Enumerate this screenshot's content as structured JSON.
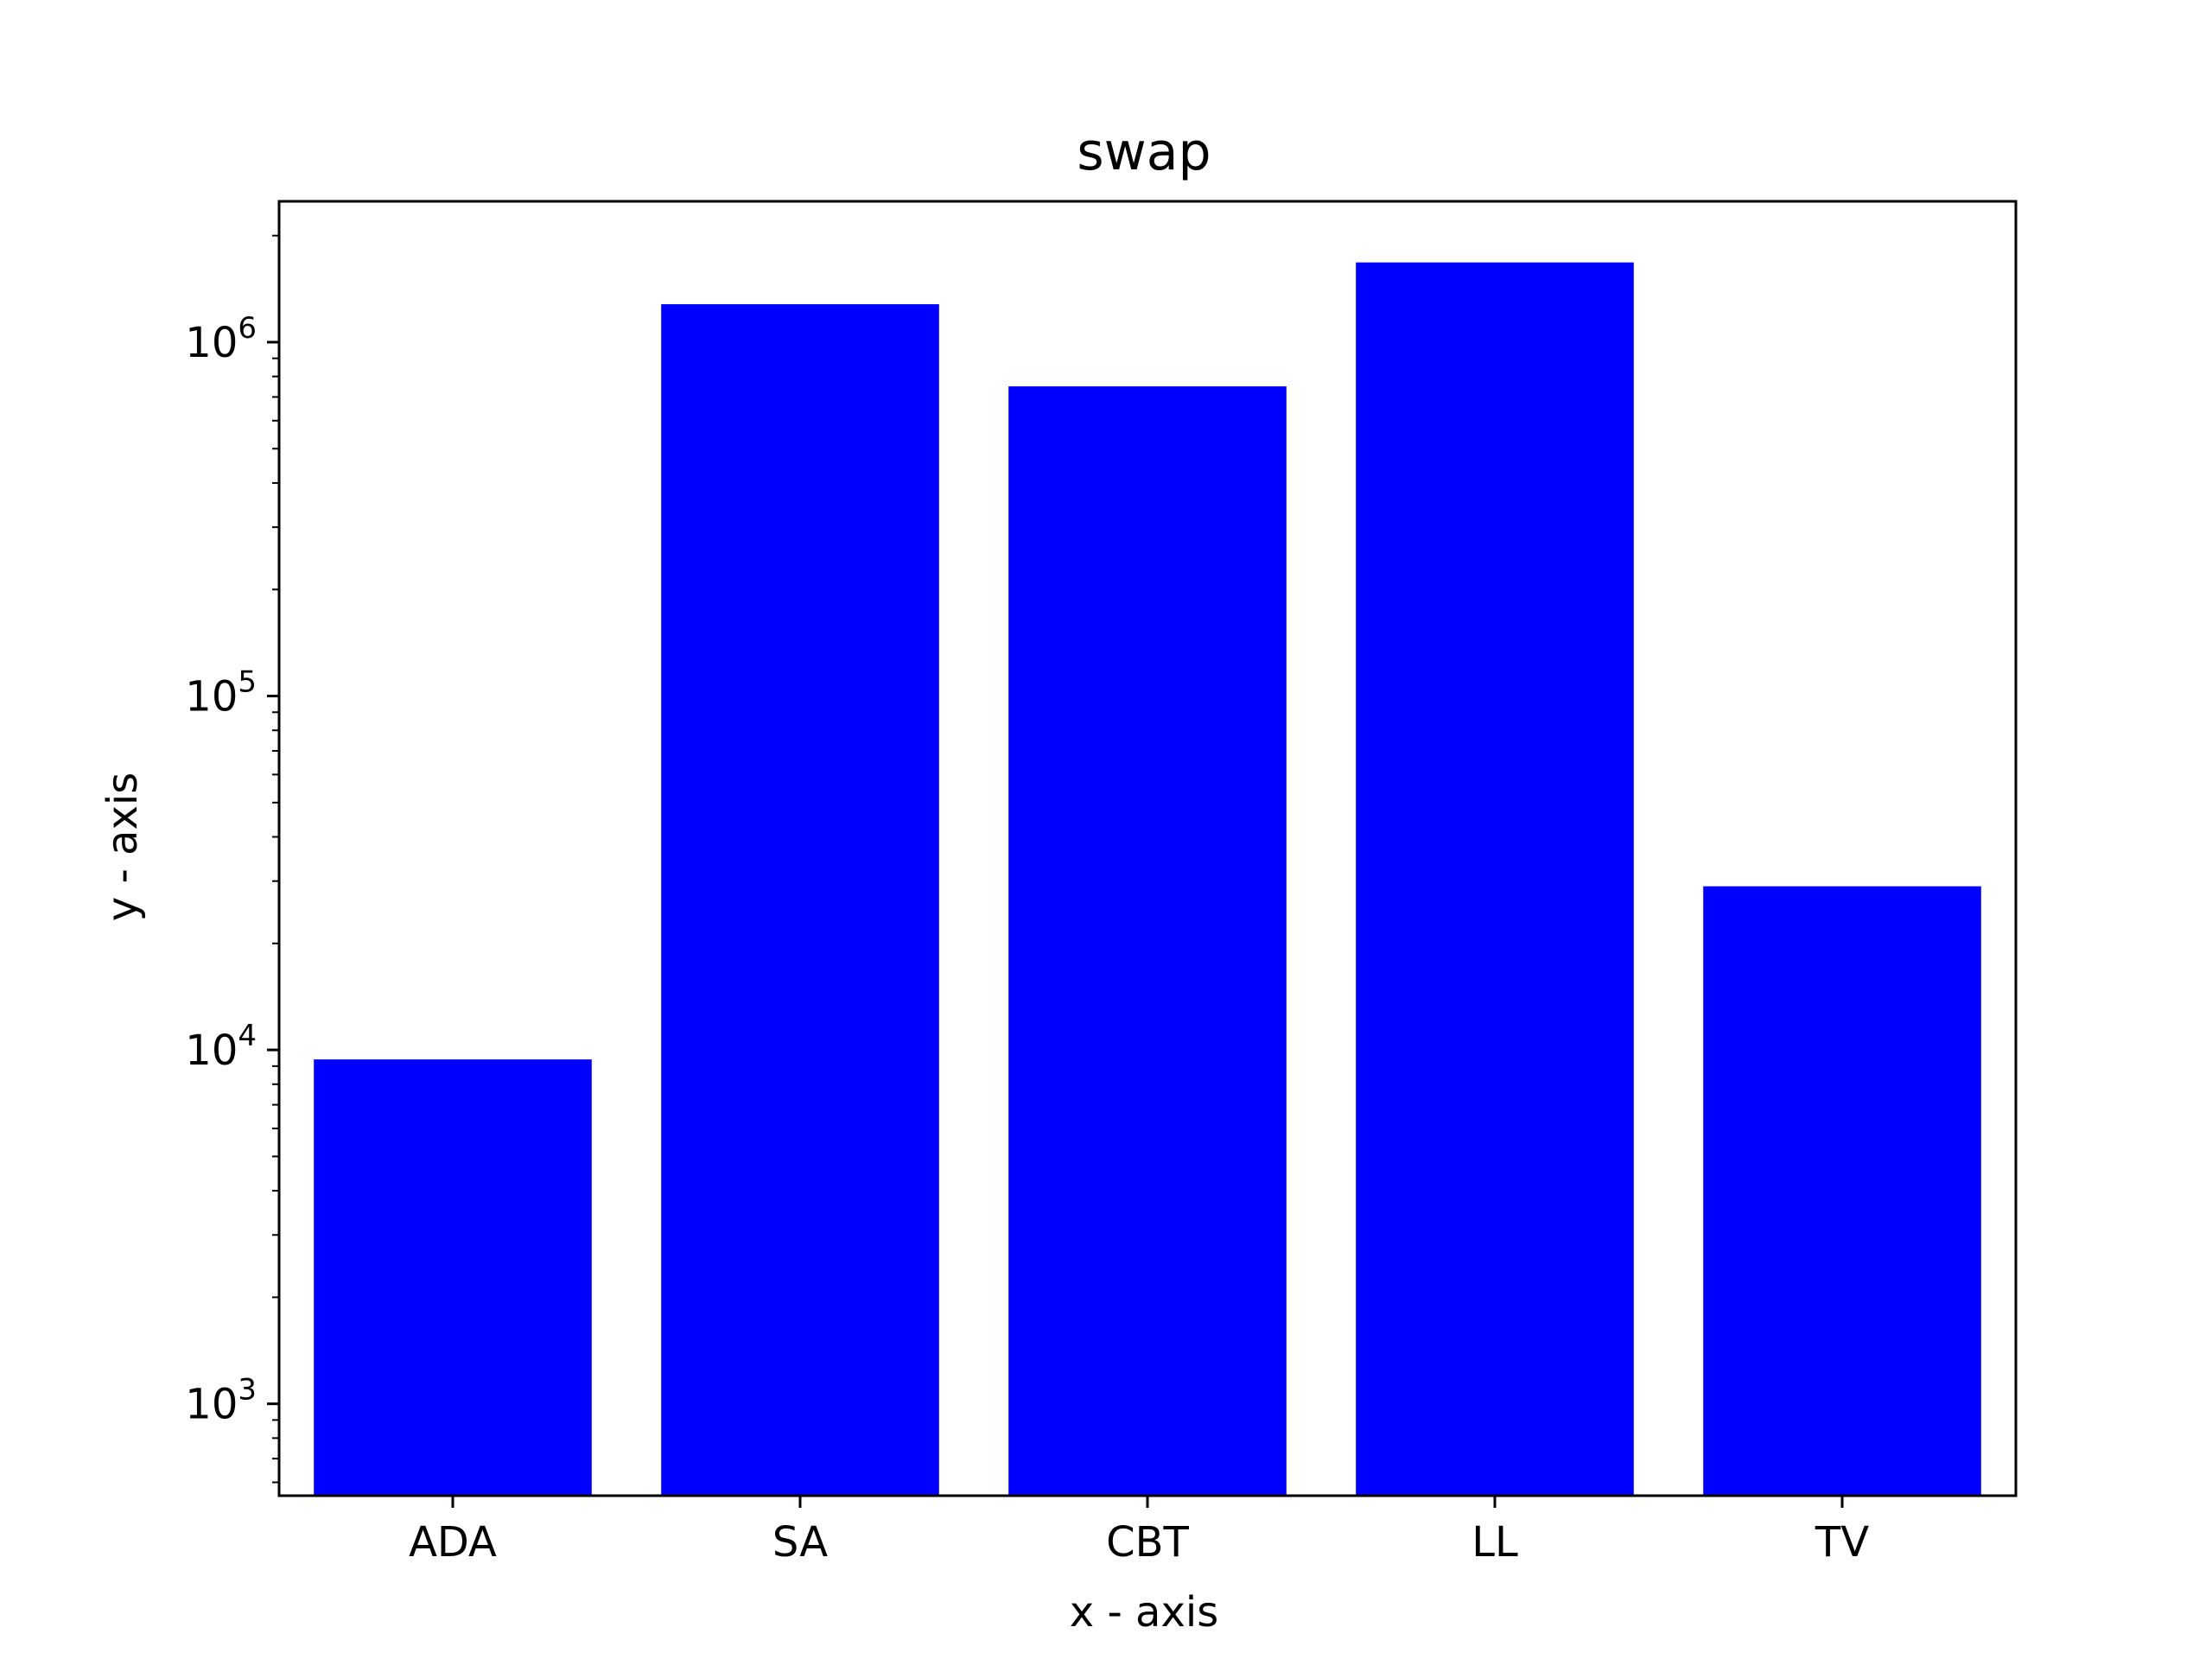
{
  "chart_data": {
    "type": "bar",
    "title": "swap",
    "xlabel": "x - axis",
    "ylabel": "y - axis",
    "y_scale": "log",
    "ylim": [
      550,
      2500000
    ],
    "categories": [
      "ADA",
      "SA",
      "CBT",
      "LL",
      "TV"
    ],
    "values": [
      9400,
      1280000,
      750000,
      1680000,
      29000
    ],
    "y_ticks": [
      {
        "value": 1000,
        "base": "10",
        "exponent": "3"
      },
      {
        "value": 10000,
        "base": "10",
        "exponent": "4"
      },
      {
        "value": 100000,
        "base": "10",
        "exponent": "5"
      },
      {
        "value": 1000000,
        "base": "10",
        "exponent": "6"
      }
    ],
    "bar_color": "#0000ff",
    "grid": false,
    "legend": "none"
  }
}
